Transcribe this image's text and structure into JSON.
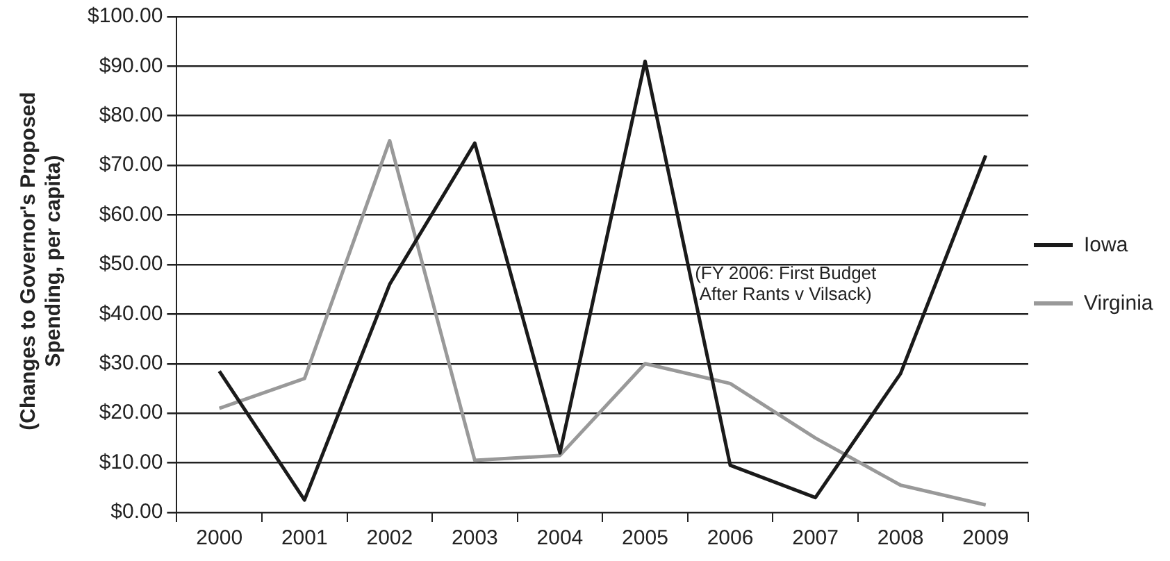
{
  "chart_data": {
    "type": "line",
    "ylabel": "(Changes to Governor's Proposed Spending, per capita)",
    "categories": [
      "2000",
      "2001",
      "2002",
      "2003",
      "2004",
      "2005",
      "2006",
      "2007",
      "2008",
      "2009"
    ],
    "series": [
      {
        "name": "Iowa",
        "color": "#1a1a1a",
        "values": [
          28.5,
          2.5,
          46,
          74.5,
          12,
          91,
          9.5,
          3,
          28,
          72
        ]
      },
      {
        "name": "Virginia",
        "color": "#999999",
        "values": [
          21,
          27,
          75,
          10.5,
          11.5,
          30,
          26,
          15,
          5.5,
          1.5
        ]
      }
    ],
    "ylim": [
      0,
      100
    ],
    "yticks": [
      {
        "value": 0,
        "label": "$0.00"
      },
      {
        "value": 10,
        "label": "$10.00"
      },
      {
        "value": 20,
        "label": "$20.00"
      },
      {
        "value": 30,
        "label": "$30.00"
      },
      {
        "value": 40,
        "label": "$40.00"
      },
      {
        "value": 50,
        "label": "$50.00"
      },
      {
        "value": 60,
        "label": "$60.00"
      },
      {
        "value": 70,
        "label": "$70.00"
      },
      {
        "value": 80,
        "label": "$80.00"
      },
      {
        "value": 90,
        "label": "$90.00"
      },
      {
        "value": 100,
        "label": "$100.00"
      }
    ],
    "grid": "y",
    "legend": "right",
    "marker": "none",
    "line_style": "solid",
    "annotations": [
      "(FY 2006: First Budget After Rants v Vilsack)"
    ]
  }
}
